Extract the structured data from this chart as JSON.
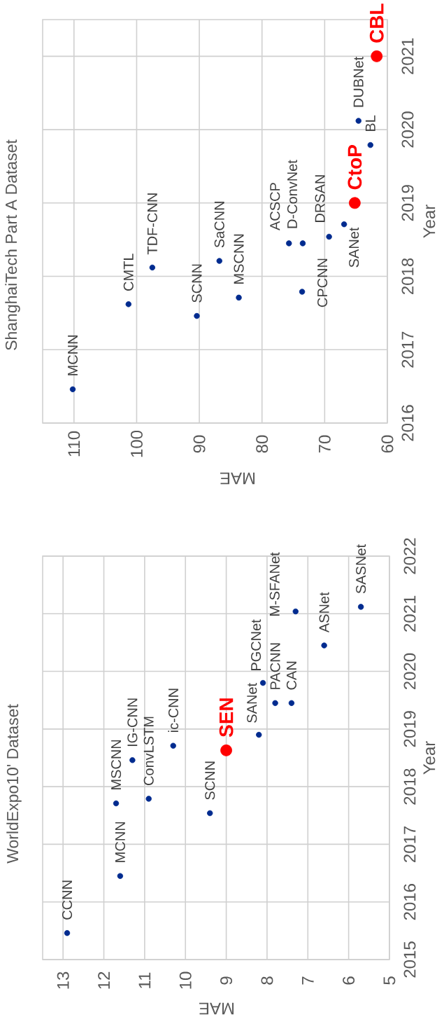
{
  "chart_data": [
    {
      "type": "scatter",
      "title": "ShanghaiTech Part A Dataset",
      "xlabel": "MAE",
      "ylabel": "Year",
      "xlim": [
        115,
        60
      ],
      "xticks": [
        110,
        100,
        90,
        80,
        70,
        60
      ],
      "ylim": [
        2016,
        2021.5
      ],
      "yticks": [
        2016,
        2017,
        2018,
        2019,
        2020,
        2021
      ],
      "grid": true,
      "marker": "circle",
      "series": [
        {
          "color": "#002b8f",
          "x": [
            110.2,
            101.3,
            97.5,
            90.4,
            86.8,
            83.7,
            75.7,
            73.5,
            73.6,
            69.3,
            66.9,
            62.7,
            64.6
          ],
          "values": [
            2016.46,
            2017.62,
            2018.12,
            2017.46,
            2018.21,
            2017.71,
            2018.45,
            2018.45,
            2017.79,
            2018.54,
            2018.71,
            2019.79,
            2020.12
          ]
        },
        {
          "color": "#ff0000",
          "x": [
            65.2,
            61.7
          ],
          "values": [
            2019.0,
            2021.0
          ]
        }
      ],
      "annotations": [
        {
          "text": "MCNN",
          "x": 110.2,
          "y": 2016.46
        },
        {
          "text": "CMTL",
          "x": 101.3,
          "y": 2017.62
        },
        {
          "text": "TDF-CNN",
          "x": 97.5,
          "y": 2018.12
        },
        {
          "text": "SCNN",
          "x": 90.4,
          "y": 2017.46
        },
        {
          "text": "SaCNN",
          "x": 86.8,
          "y": 2018.21
        },
        {
          "text": "MSCNN",
          "x": 83.7,
          "y": 2017.71
        },
        {
          "text": "ACSCP",
          "x": 75.7,
          "y": 2018.45
        },
        {
          "text": "D-ConvNet",
          "x": 73.5,
          "y": 2018.45
        },
        {
          "text": "CPCNN",
          "x": 73.6,
          "y": 2017.79
        },
        {
          "text": "DRSAN",
          "x": 69.3,
          "y": 2018.54
        },
        {
          "text": "SANet",
          "x": 66.9,
          "y": 2018.71
        },
        {
          "text": "CtoP",
          "x": 65.2,
          "y": 2019.0
        },
        {
          "text": "BL",
          "x": 62.7,
          "y": 2019.79
        },
        {
          "text": "DUBNet",
          "x": 64.6,
          "y": 2020.12
        },
        {
          "text": "CBL",
          "x": 61.7,
          "y": 2021.0
        }
      ]
    },
    {
      "type": "scatter",
      "title": "WorldExpo10' Dataset",
      "xlabel": "MAE",
      "ylabel": "Year",
      "xlim": [
        13.5,
        5
      ],
      "xticks": [
        13,
        12,
        11,
        10,
        9,
        8,
        7,
        6,
        5
      ],
      "ylim": [
        2015,
        2022
      ],
      "yticks": [
        2015,
        2016,
        2017,
        2018,
        2019,
        2020,
        2021,
        2022
      ],
      "grid": true,
      "marker": "circle",
      "series": [
        {
          "color": "#002b8f",
          "x": [
            12.9,
            11.6,
            11.7,
            10.9,
            11.3,
            10.3,
            9.4,
            8.2,
            8.1,
            7.8,
            7.4,
            7.3,
            6.6,
            5.7
          ],
          "values": [
            2015.46,
            2016.45,
            2017.71,
            2017.79,
            2018.46,
            2018.71,
            2017.54,
            2018.9,
            2019.8,
            2019.45,
            2019.45,
            2021.04,
            2020.45,
            2021.12
          ]
        },
        {
          "color": "#ff0000",
          "x": [
            9.0
          ],
          "values": [
            2018.63
          ]
        }
      ],
      "annotations": [
        {
          "text": "CCNN",
          "x": 12.9,
          "y": 2015.46
        },
        {
          "text": "MCNN",
          "x": 11.6,
          "y": 2016.45
        },
        {
          "text": "MSCNN",
          "x": 11.7,
          "y": 2017.71
        },
        {
          "text": "ConvLSTM",
          "x": 10.9,
          "y": 2017.79
        },
        {
          "text": "IG-CNN",
          "x": 11.3,
          "y": 2018.46
        },
        {
          "text": "ic-CNN",
          "x": 10.3,
          "y": 2018.71
        },
        {
          "text": "SCNN",
          "x": 9.4,
          "y": 2017.54
        },
        {
          "text": "SEN",
          "x": 9.0,
          "y": 2018.63
        },
        {
          "text": "SANet",
          "x": 8.2,
          "y": 2018.9
        },
        {
          "text": "PGCNet",
          "x": 8.1,
          "y": 2019.8
        },
        {
          "text": "PACNN",
          "x": 7.8,
          "y": 2019.45
        },
        {
          "text": "CAN",
          "x": 7.4,
          "y": 2019.45
        },
        {
          "text": "M-SFANet",
          "x": 7.3,
          "y": 2021.04
        },
        {
          "text": "ASNet",
          "x": 6.6,
          "y": 2020.45
        },
        {
          "text": "SASNet",
          "x": 5.7,
          "y": 2021.12
        }
      ]
    }
  ]
}
